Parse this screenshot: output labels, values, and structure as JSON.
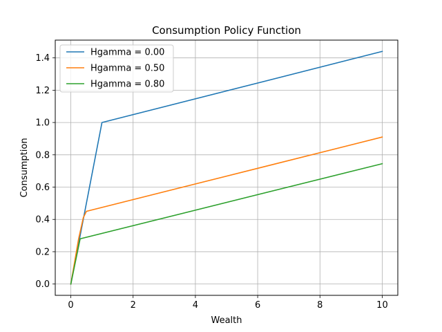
{
  "chart_data": {
    "type": "line",
    "title": "Consumption Policy Function",
    "xlabel": "Wealth",
    "ylabel": "Consumption",
    "xlim": [
      -0.5,
      10.5
    ],
    "ylim": [
      -0.07,
      1.51
    ],
    "xticks": [
      0,
      2,
      4,
      6,
      8,
      10
    ],
    "xtick_labels": [
      "0",
      "2",
      "4",
      "6",
      "8",
      "10"
    ],
    "yticks": [
      0.0,
      0.2,
      0.4,
      0.6,
      0.8,
      1.0,
      1.2,
      1.4
    ],
    "ytick_labels": [
      "0.0",
      "0.2",
      "0.4",
      "0.6",
      "0.8",
      "1.0",
      "1.2",
      "1.4"
    ],
    "grid": true,
    "legend_position": "top-left",
    "series": [
      {
        "name": "Hgamma = 0.00",
        "color": "#1f77b4",
        "x": [
          0,
          1.0,
          10
        ],
        "y": [
          0.0,
          1.0,
          1.44
        ]
      },
      {
        "name": "Hgamma = 0.50",
        "color": "#ff7f0e",
        "x": [
          0,
          0.25,
          0.4,
          0.5,
          10
        ],
        "y": [
          0.0,
          0.28,
          0.41,
          0.45,
          0.91
        ]
      },
      {
        "name": "Hgamma = 0.80",
        "color": "#2ca02c",
        "x": [
          0,
          0.3,
          10
        ],
        "y": [
          0.0,
          0.28,
          0.745
        ]
      }
    ]
  }
}
